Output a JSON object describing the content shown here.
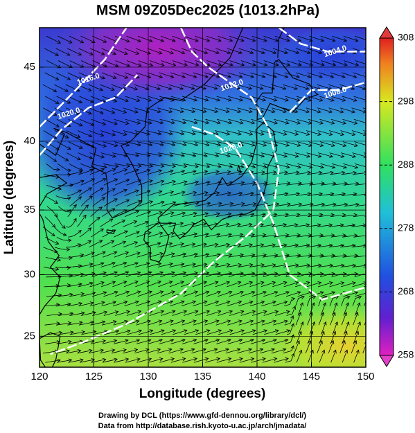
{
  "map": {
    "title": "MSM 09Z05Dec2025 (1013.2hPa)",
    "x_label": "Longitude (degrees)",
    "y_label": "Latitude  (degrees)",
    "xlim": [
      120,
      150
    ],
    "xticks": [
      120,
      125,
      130,
      135,
      140,
      145,
      150
    ],
    "ylim": [
      22.4,
      47.5
    ],
    "yticks": [
      25,
      30,
      35,
      40,
      45
    ],
    "colorbar": {
      "lim": [
        258,
        308
      ],
      "ticks": [
        258,
        268,
        278,
        288,
        298,
        308
      ]
    },
    "isobar_labels": [
      "1016.0",
      "1020.0",
      "1012.0",
      "1004.0",
      "1008.0",
      "1020.0"
    ],
    "credits": [
      "Drawing by DCL (https://www.gfd-dennou.org/library/dcl/)",
      "Data from http://database.rish.kyoto-u.ac.jp/arch/jmadata/"
    ]
  }
}
